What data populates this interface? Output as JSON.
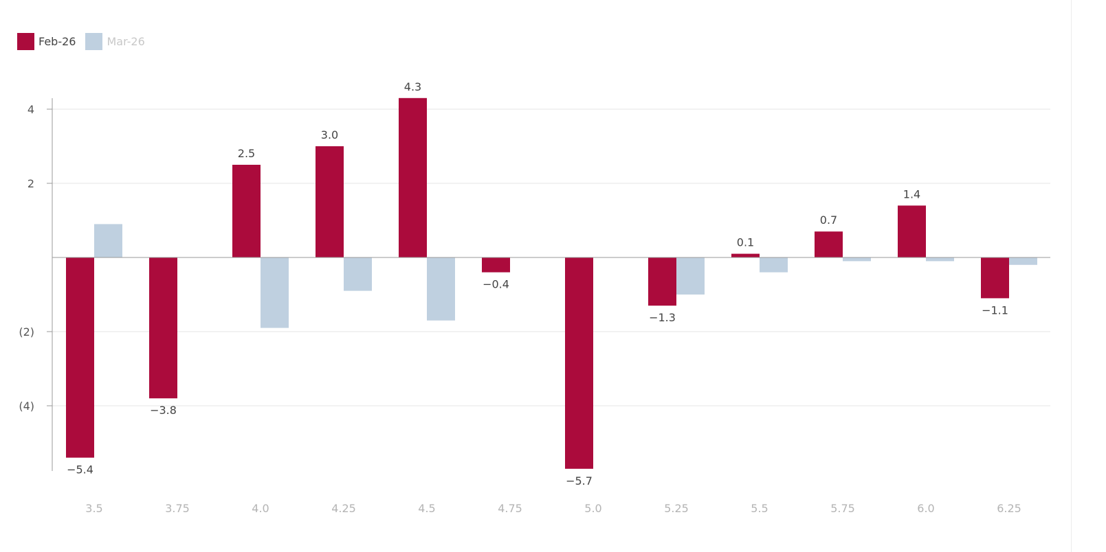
{
  "legend": {
    "items": [
      {
        "label": "Feb-26",
        "color": "#ab0b3c",
        "text_color": "#444444"
      },
      {
        "label": "Mar-26",
        "color": "#bfd0e0",
        "text_color": "#c8c8c8"
      }
    ]
  },
  "chart_data": {
    "type": "bar",
    "categories": [
      "3.5",
      "3.75",
      "4.0",
      "4.25",
      "4.5",
      "4.75",
      "5.0",
      "5.25",
      "5.5",
      "5.75",
      "6.0",
      "6.25"
    ],
    "series": [
      {
        "name": "Feb-26",
        "color": "#ab0b3c",
        "values": [
          -5.4,
          -3.8,
          2.5,
          3.0,
          4.3,
          -0.4,
          -5.7,
          -1.3,
          0.1,
          0.7,
          1.4,
          -1.1
        ],
        "data_labels": [
          "−5.4",
          "−3.8",
          "2.5",
          "3.0",
          "4.3",
          "−0.4",
          "−5.7",
          "−1.3",
          "0.1",
          "0.7",
          "1.4",
          "−1.1"
        ]
      },
      {
        "name": "Mar-26",
        "color": "#bfd0e0",
        "values": [
          0.9,
          null,
          -1.9,
          -0.9,
          -1.7,
          null,
          null,
          -1.0,
          -0.4,
          -0.1,
          -0.1,
          -0.2
        ]
      }
    ],
    "y_ticks": [
      {
        "value": 4,
        "label": "4"
      },
      {
        "value": 2,
        "label": "2"
      },
      {
        "value": -2,
        "label": "(2)"
      },
      {
        "value": -4,
        "label": "(4)"
      }
    ],
    "ylim": [
      -5.8,
      4.3
    ],
    "grid": true,
    "legend_position": "top-left"
  }
}
